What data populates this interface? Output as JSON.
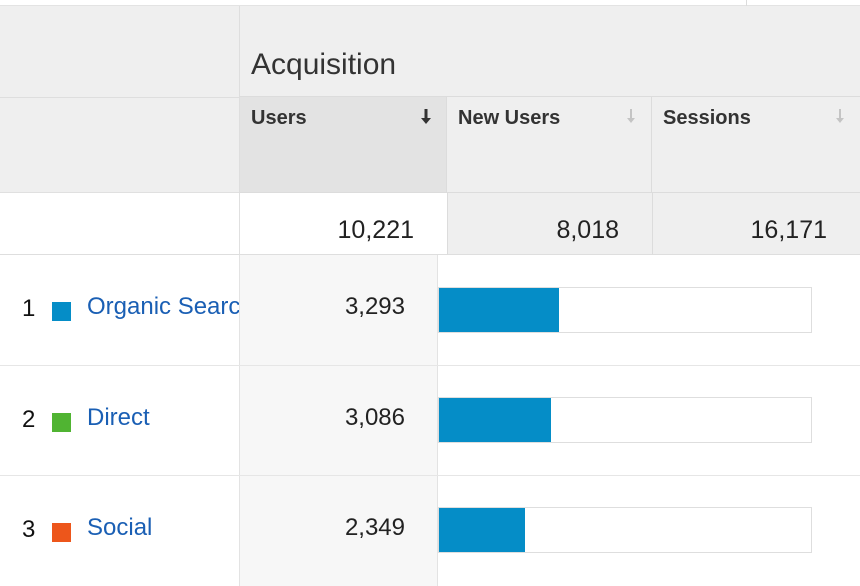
{
  "header": {
    "group_label": "Acquisition",
    "columns": [
      {
        "label": "Users",
        "sorted": true
      },
      {
        "label": "New Users",
        "sorted": false
      },
      {
        "label": "Sessions",
        "sorted": false
      }
    ]
  },
  "totals": {
    "users": "10,221",
    "new_users": "8,018",
    "sessions": "16,171"
  },
  "rows": [
    {
      "rank": "1",
      "channel": "Organic Search",
      "users": "3,293",
      "share": 0.322,
      "swatch": "#058dc7"
    },
    {
      "rank": "2",
      "channel": "Direct",
      "users": "3,086",
      "share": 0.302,
      "swatch": "#50b432"
    },
    {
      "rank": "3",
      "channel": "Social",
      "users": "2,349",
      "share": 0.23,
      "swatch": "#ed561b"
    }
  ],
  "colors": {
    "bar": "#058dc7",
    "link": "#1a5fb4",
    "header_bg": "#efefef"
  }
}
